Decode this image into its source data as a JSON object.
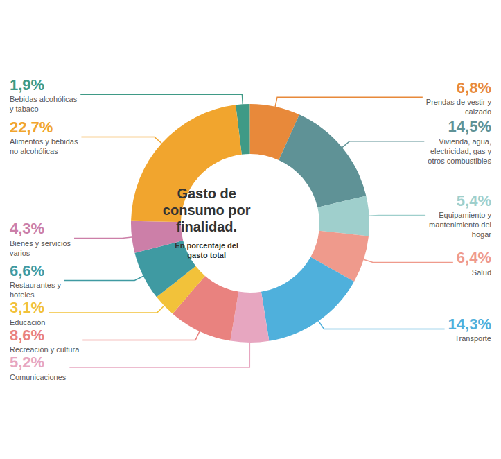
{
  "chart_data": {
    "type": "pie",
    "title": "Gasto de consumo por finalidad.",
    "subtitle": "En porcentaje del gasto total",
    "categories": [
      "Bebidas alcohólicas y tabaco",
      "Prendas de vestir y calzado",
      "Vivienda, agua, electricidad, gas y otros combustibles",
      "Equipamiento y mantenimiento del hogar",
      "Salud",
      "Transporte",
      "Comunicaciones",
      "Recreación y cultura",
      "Educación",
      "Restaurantes y hoteles",
      "Bienes y servicios varios",
      "Alimentos y bebidas no alcohólicas"
    ],
    "values": [
      1.9,
      6.8,
      14.5,
      5.4,
      6.4,
      14.3,
      5.2,
      8.6,
      3.1,
      6.6,
      4.3,
      22.7
    ],
    "value_labels": [
      "1,9%",
      "6,8%",
      "14,5%",
      "5,4%",
      "6,4%",
      "14,3%",
      "5,2%",
      "8,6%",
      "3,1%",
      "6,6%",
      "4,3%",
      "22,7%"
    ],
    "colors": [
      "#3f9a86",
      "#e8893a",
      "#5f9296",
      "#9fcfcc",
      "#ef9a8c",
      "#4fb0dc",
      "#e7a6c0",
      "#e9827f",
      "#f2c23a",
      "#3f9aa2",
      "#cc7fa8",
      "#f1a52e"
    ],
    "data_labels": true
  }
}
